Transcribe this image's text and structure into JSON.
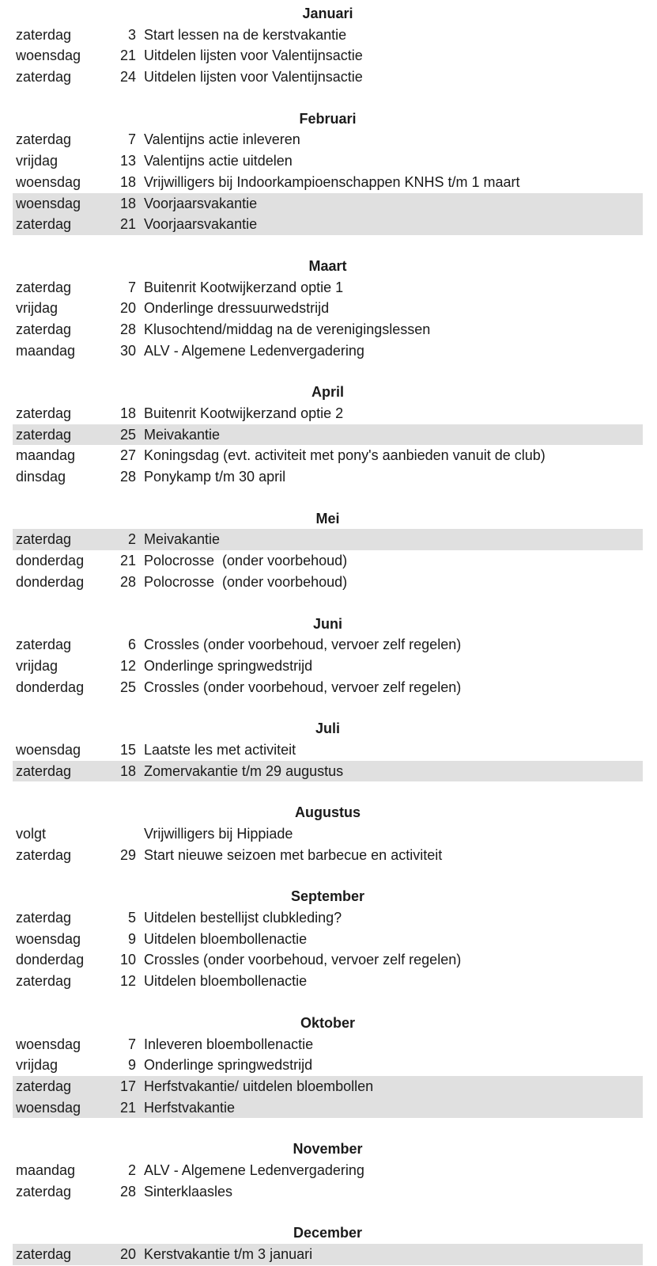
{
  "page": {
    "background_color": "#ffffff",
    "text_color": "#1a1a1a",
    "highlight_color": "#e0e0e0",
    "highlight_meaning": "vacation-row"
  },
  "calendar": {
    "months": [
      {
        "name": "Januari",
        "events": [
          {
            "day": "zaterdag",
            "date": "3",
            "description": "Start lessen na de kerstvakantie",
            "highlighted": false
          },
          {
            "day": "woensdag",
            "date": "21",
            "description": "Uitdelen lijsten voor Valentijnsactie",
            "highlighted": false
          },
          {
            "day": "zaterdag",
            "date": "24",
            "description": "Uitdelen lijsten voor Valentijnsactie",
            "highlighted": false
          }
        ]
      },
      {
        "name": "Februari",
        "events": [
          {
            "day": "zaterdag",
            "date": "7",
            "description": "Valentijns actie inleveren",
            "highlighted": false
          },
          {
            "day": "vrijdag",
            "date": "13",
            "description": "Valentijns actie uitdelen",
            "highlighted": false
          },
          {
            "day": "woensdag",
            "date": "18",
            "description": "Vrijwilligers bij Indoorkampioenschappen KNHS t/m 1 maart",
            "highlighted": false
          },
          {
            "day": "woensdag",
            "date": "18",
            "description": "Voorjaarsvakantie",
            "highlighted": true
          },
          {
            "day": "zaterdag",
            "date": "21",
            "description": "Voorjaarsvakantie",
            "highlighted": true
          }
        ]
      },
      {
        "name": "Maart",
        "events": [
          {
            "day": "zaterdag",
            "date": "7",
            "description": "Buitenrit Kootwijkerzand optie 1",
            "highlighted": false
          },
          {
            "day": "vrijdag",
            "date": "20",
            "description": "Onderlinge dressuurwedstrijd",
            "highlighted": false
          },
          {
            "day": "zaterdag",
            "date": "28",
            "description": "Klusochtend/middag na de verenigingslessen",
            "highlighted": false
          },
          {
            "day": "maandag",
            "date": "30",
            "description": "ALV - Algemene Ledenvergadering",
            "highlighted": false
          }
        ]
      },
      {
        "name": "April",
        "events": [
          {
            "day": "zaterdag",
            "date": "18",
            "description": "Buitenrit Kootwijkerzand optie 2",
            "highlighted": false
          },
          {
            "day": "zaterdag",
            "date": "25",
            "description": "Meivakantie",
            "highlighted": true
          },
          {
            "day": "maandag",
            "date": "27",
            "description": "Koningsdag (evt. activiteit met pony's aanbieden vanuit de club)",
            "highlighted": false
          },
          {
            "day": "dinsdag",
            "date": "28",
            "description": "Ponykamp t/m 30 april",
            "highlighted": false
          }
        ]
      },
      {
        "name": "Mei",
        "events": [
          {
            "day": "zaterdag",
            "date": "2",
            "description": "Meivakantie",
            "highlighted": true
          },
          {
            "day": "donderdag",
            "date": "21",
            "description": "Polocrosse  (onder voorbehoud)",
            "highlighted": false
          },
          {
            "day": "donderdag",
            "date": "28",
            "description": "Polocrosse  (onder voorbehoud)",
            "highlighted": false
          }
        ]
      },
      {
        "name": "Juni",
        "events": [
          {
            "day": "zaterdag",
            "date": "6",
            "description": "Crossles (onder voorbehoud, vervoer zelf regelen)",
            "highlighted": false
          },
          {
            "day": "vrijdag",
            "date": "12",
            "description": "Onderlinge springwedstrijd",
            "highlighted": false
          },
          {
            "day": "donderdag",
            "date": "25",
            "description": "Crossles (onder voorbehoud, vervoer zelf regelen)",
            "highlighted": false
          }
        ]
      },
      {
        "name": "Juli",
        "events": [
          {
            "day": "woensdag",
            "date": "15",
            "description": "Laatste les met activiteit",
            "highlighted": false
          },
          {
            "day": "zaterdag",
            "date": "18",
            "description": "Zomervakantie t/m 29 augustus",
            "highlighted": true
          }
        ]
      },
      {
        "name": "Augustus",
        "events": [
          {
            "day": "volgt",
            "date": "",
            "description": "Vrijwilligers bij Hippiade",
            "highlighted": false
          },
          {
            "day": "zaterdag",
            "date": "29",
            "description": "Start nieuwe seizoen met barbecue en activiteit",
            "highlighted": false
          }
        ]
      },
      {
        "name": "September",
        "events": [
          {
            "day": "zaterdag",
            "date": "5",
            "description": "Uitdelen bestellijst clubkleding?",
            "highlighted": false
          },
          {
            "day": "woensdag",
            "date": "9",
            "description": "Uitdelen bloembollenactie",
            "highlighted": false
          },
          {
            "day": "donderdag",
            "date": "10",
            "description": "Crossles (onder voorbehoud, vervoer zelf regelen)",
            "highlighted": false
          },
          {
            "day": "zaterdag",
            "date": "12",
            "description": "Uitdelen bloembollenactie",
            "highlighted": false
          }
        ]
      },
      {
        "name": "Oktober",
        "events": [
          {
            "day": "woensdag",
            "date": "7",
            "description": "Inleveren bloembollenactie",
            "highlighted": false
          },
          {
            "day": "vrijdag",
            "date": "9",
            "description": "Onderlinge springwedstrijd",
            "highlighted": false
          },
          {
            "day": "zaterdag",
            "date": "17",
            "description": "Herfstvakantie/ uitdelen bloembollen",
            "highlighted": true
          },
          {
            "day": "woensdag",
            "date": "21",
            "description": "Herfstvakantie",
            "highlighted": true
          }
        ]
      },
      {
        "name": "November",
        "events": [
          {
            "day": "maandag",
            "date": "2",
            "description": "ALV - Algemene Ledenvergadering",
            "highlighted": false
          },
          {
            "day": "zaterdag",
            "date": "28",
            "description": "Sinterklaasles",
            "highlighted": false
          }
        ]
      },
      {
        "name": "December",
        "events": [
          {
            "day": "zaterdag",
            "date": "20",
            "description": "Kerstvakantie t/m 3 januari",
            "highlighted": true
          }
        ]
      }
    ]
  }
}
